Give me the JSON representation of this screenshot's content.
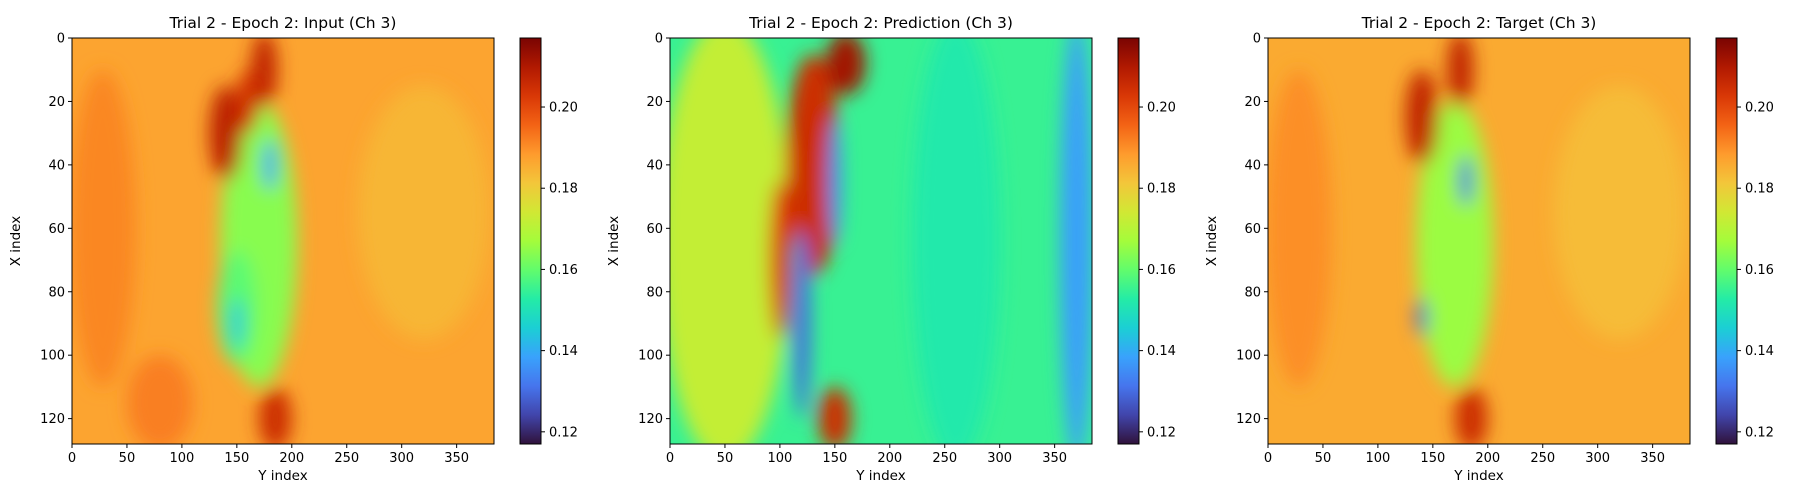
{
  "colors": {
    "colormap": "turbo",
    "colormap_stops": [
      "#30123b",
      "#4145ab",
      "#4675ed",
      "#39a2fc",
      "#1bcfd4",
      "#24eca6",
      "#61fc6c",
      "#a4fc3b",
      "#d1e834",
      "#f3c63a",
      "#fe9b2d",
      "#f36315",
      "#d93806",
      "#b11901",
      "#7a0402"
    ]
  },
  "chart_data": [
    {
      "type": "heatmap",
      "title": "Trial 2 - Epoch 2: Input (Ch 3)",
      "xlabel": "Y index",
      "ylabel": "X index",
      "xlim": [
        0,
        384
      ],
      "ylim": [
        128,
        0
      ],
      "xticks": [
        "0",
        "50",
        "100",
        "150",
        "200",
        "250",
        "300",
        "350"
      ],
      "yticks": [
        "0",
        "20",
        "40",
        "60",
        "80",
        "100",
        "120"
      ],
      "colorbar": {
        "range": [
          0.117,
          0.217
        ],
        "ticks": [
          "0.12",
          "0.14",
          "0.16",
          "0.18",
          "0.20"
        ]
      },
      "background_value": 0.187,
      "features": [
        {
          "cx": 28,
          "cy": 60,
          "rx": 30,
          "ry": 50,
          "v": 0.191
        },
        {
          "cx": 320,
          "cy": 55,
          "rx": 60,
          "ry": 40,
          "v": 0.184
        },
        {
          "cx": 80,
          "cy": 115,
          "rx": 30,
          "ry": 15,
          "v": 0.192
        },
        {
          "cx": 170,
          "cy": 65,
          "rx": 35,
          "ry": 45,
          "v": 0.164
        },
        {
          "cx": 150,
          "cy": 85,
          "rx": 18,
          "ry": 18,
          "v": 0.159
        },
        {
          "cx": 140,
          "cy": 30,
          "rx": 15,
          "ry": 15,
          "v": 0.208
        },
        {
          "cx": 175,
          "cy": 10,
          "rx": 12,
          "ry": 12,
          "v": 0.207
        },
        {
          "cx": 160,
          "cy": 20,
          "rx": 10,
          "ry": 10,
          "v": 0.204
        },
        {
          "cx": 185,
          "cy": 120,
          "rx": 15,
          "ry": 10,
          "v": 0.205
        },
        {
          "cx": 180,
          "cy": 40,
          "rx": 6,
          "ry": 8,
          "v": 0.137
        },
        {
          "cx": 150,
          "cy": 90,
          "rx": 5,
          "ry": 8,
          "v": 0.142
        }
      ]
    },
    {
      "type": "heatmap",
      "title": "Trial 2 - Epoch 2: Prediction (Ch 3)",
      "xlabel": "Y index",
      "ylabel": "X index",
      "xlim": [
        0,
        384
      ],
      "ylim": [
        128,
        0
      ],
      "xticks": [
        "0",
        "50",
        "100",
        "150",
        "200",
        "250",
        "300",
        "350"
      ],
      "yticks": [
        "0",
        "20",
        "40",
        "60",
        "80",
        "100",
        "120"
      ],
      "colorbar": {
        "range": [
          0.117,
          0.217
        ],
        "ticks": [
          "0.12",
          "0.14",
          "0.16",
          "0.18",
          "0.20"
        ]
      },
      "background_value": 0.155,
      "features": [
        {
          "cx": 50,
          "cy": 64,
          "rx": 60,
          "ry": 70,
          "v": 0.172
        },
        {
          "cx": 130,
          "cy": 40,
          "rx": 25,
          "ry": 35,
          "v": 0.205
        },
        {
          "cx": 160,
          "cy": 8,
          "rx": 18,
          "ry": 10,
          "v": 0.212
        },
        {
          "cx": 100,
          "cy": 70,
          "rx": 10,
          "ry": 25,
          "v": 0.202
        },
        {
          "cx": 150,
          "cy": 120,
          "rx": 15,
          "ry": 10,
          "v": 0.205
        },
        {
          "cx": 120,
          "cy": 90,
          "rx": 8,
          "ry": 30,
          "v": 0.13
        },
        {
          "cx": 150,
          "cy": 45,
          "rx": 6,
          "ry": 20,
          "v": 0.135
        },
        {
          "cx": 370,
          "cy": 64,
          "rx": 15,
          "ry": 70,
          "v": 0.138
        },
        {
          "cx": 260,
          "cy": 64,
          "rx": 40,
          "ry": 70,
          "v": 0.152
        }
      ]
    },
    {
      "type": "heatmap",
      "title": "Trial 2 - Epoch 2: Target (Ch 3)",
      "xlabel": "Y index",
      "ylabel": "X index",
      "xlim": [
        0,
        384
      ],
      "ylim": [
        128,
        0
      ],
      "xticks": [
        "0",
        "50",
        "100",
        "150",
        "200",
        "250",
        "300",
        "350"
      ],
      "yticks": [
        "0",
        "20",
        "40",
        "60",
        "80",
        "100",
        "120"
      ],
      "colorbar": {
        "range": [
          0.117,
          0.217
        ],
        "ticks": [
          "0.12",
          "0.14",
          "0.16",
          "0.18",
          "0.20"
        ]
      },
      "background_value": 0.186,
      "features": [
        {
          "cx": 28,
          "cy": 60,
          "rx": 30,
          "ry": 50,
          "v": 0.19
        },
        {
          "cx": 320,
          "cy": 55,
          "rx": 60,
          "ry": 40,
          "v": 0.183
        },
        {
          "cx": 170,
          "cy": 65,
          "rx": 35,
          "ry": 45,
          "v": 0.166
        },
        {
          "cx": 140,
          "cy": 25,
          "rx": 15,
          "ry": 15,
          "v": 0.207
        },
        {
          "cx": 175,
          "cy": 10,
          "rx": 12,
          "ry": 12,
          "v": 0.207
        },
        {
          "cx": 185,
          "cy": 120,
          "rx": 15,
          "ry": 10,
          "v": 0.205
        },
        {
          "cx": 180,
          "cy": 45,
          "rx": 6,
          "ry": 8,
          "v": 0.13
        },
        {
          "cx": 140,
          "cy": 88,
          "rx": 5,
          "ry": 6,
          "v": 0.128
        }
      ]
    }
  ]
}
